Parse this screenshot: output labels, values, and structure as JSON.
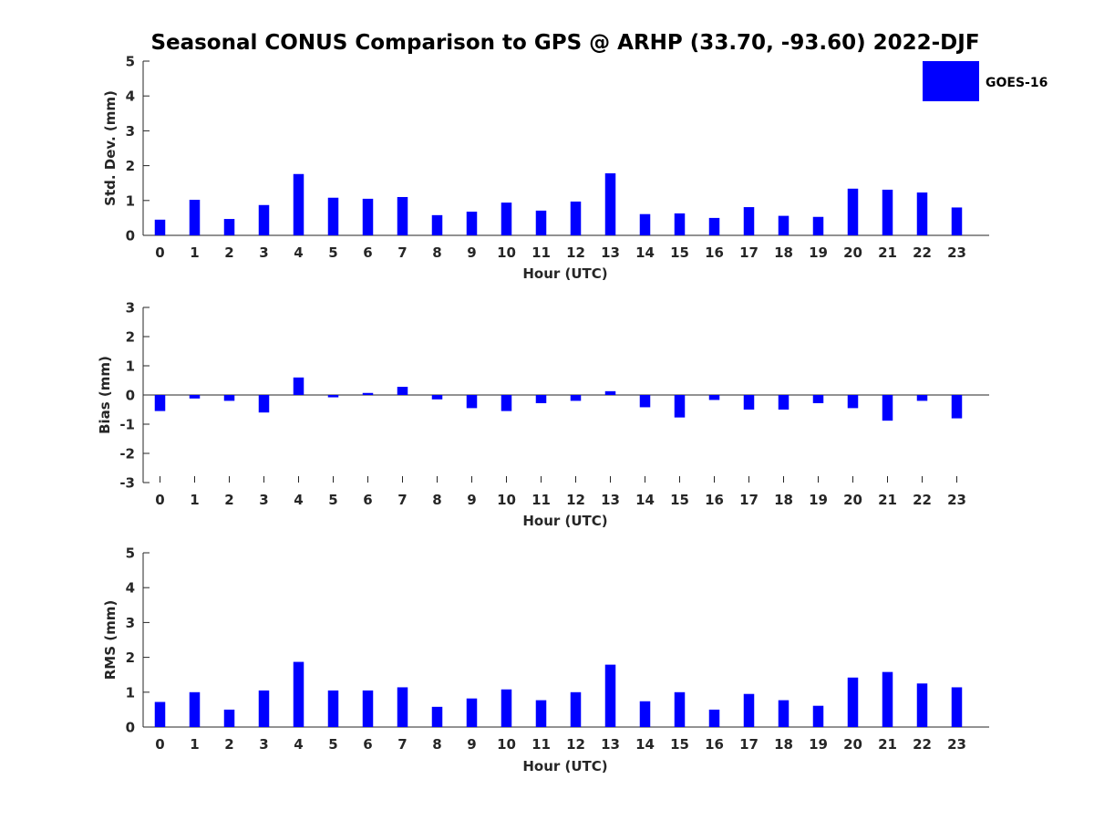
{
  "title": "Seasonal CONUS Comparison to GPS @ ARHP (33.70, -93.60) 2022-DJF",
  "legend": {
    "label": "GOES-16",
    "color": "#0000ff",
    "placement": "top-right"
  },
  "chart_data": [
    {
      "type": "bar",
      "name": "std-dev",
      "title": "Seasonal CONUS Comparison to GPS @ ARHP (33.70, -93.60) 2022-DJF",
      "xlabel": "Hour (UTC)",
      "ylabel": "Std. Dev. (mm)",
      "ylim": [
        0,
        5
      ],
      "yticks": [
        "0",
        "1",
        "2",
        "3",
        "4",
        "5"
      ],
      "categories": [
        "0",
        "1",
        "2",
        "3",
        "4",
        "5",
        "6",
        "7",
        "8",
        "9",
        "10",
        "11",
        "12",
        "13",
        "14",
        "15",
        "16",
        "17",
        "18",
        "19",
        "20",
        "21",
        "22",
        "23"
      ],
      "series": [
        {
          "name": "GOES-16",
          "color": "#0000ff",
          "values": [
            0.45,
            1.02,
            0.47,
            0.87,
            1.76,
            1.08,
            1.05,
            1.1,
            0.58,
            0.68,
            0.94,
            0.71,
            0.97,
            1.78,
            0.61,
            0.63,
            0.5,
            0.81,
            0.56,
            0.53,
            1.34,
            1.31,
            1.23,
            0.8
          ]
        }
      ]
    },
    {
      "type": "bar",
      "name": "bias",
      "title": "",
      "xlabel": "Hour (UTC)",
      "ylabel": "Bias (mm)",
      "ylim": [
        -3,
        3
      ],
      "yticks": [
        "-3",
        "-2",
        "-1",
        "0",
        "1",
        "2",
        "3"
      ],
      "categories": [
        "0",
        "1",
        "2",
        "3",
        "4",
        "5",
        "6",
        "7",
        "8",
        "9",
        "10",
        "11",
        "12",
        "13",
        "14",
        "15",
        "16",
        "17",
        "18",
        "19",
        "20",
        "21",
        "22",
        "23"
      ],
      "series": [
        {
          "name": "GOES-16",
          "color": "#0000ff",
          "values": [
            -0.55,
            -0.12,
            -0.2,
            -0.6,
            0.6,
            -0.08,
            0.07,
            0.28,
            -0.15,
            -0.45,
            -0.55,
            -0.28,
            -0.2,
            0.13,
            -0.42,
            -0.77,
            -0.17,
            -0.5,
            -0.5,
            -0.28,
            -0.45,
            -0.88,
            -0.2,
            -0.8
          ]
        }
      ]
    },
    {
      "type": "bar",
      "name": "rms",
      "title": "",
      "xlabel": "Hour (UTC)",
      "ylabel": "RMS (mm)",
      "ylim": [
        0,
        5
      ],
      "yticks": [
        "0",
        "1",
        "2",
        "3",
        "4",
        "5"
      ],
      "categories": [
        "0",
        "1",
        "2",
        "3",
        "4",
        "5",
        "6",
        "7",
        "8",
        "9",
        "10",
        "11",
        "12",
        "13",
        "14",
        "15",
        "16",
        "17",
        "18",
        "19",
        "20",
        "21",
        "22",
        "23"
      ],
      "series": [
        {
          "name": "GOES-16",
          "color": "#0000ff",
          "values": [
            0.72,
            1.0,
            0.5,
            1.05,
            1.87,
            1.05,
            1.05,
            1.14,
            0.58,
            0.82,
            1.08,
            0.77,
            1.0,
            1.79,
            0.74,
            1.0,
            0.5,
            0.95,
            0.77,
            0.61,
            1.42,
            1.58,
            1.25,
            1.14
          ]
        }
      ]
    }
  ]
}
